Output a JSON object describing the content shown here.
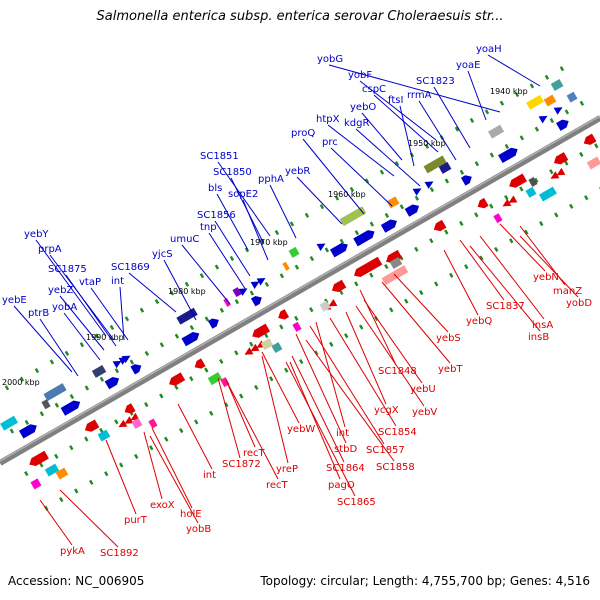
{
  "title": "Salmonella enterica subsp. enterica serovar Choleraesuis str...",
  "footer": {
    "accession": "Accession: NC_006905",
    "summary": "Topology: circular; Length: 4,755,700 bp; Genes: 4,516"
  },
  "colors": {
    "forward": "#0000cc",
    "reverse": "#dd0000",
    "backbone": "#808080",
    "tick": "#228b22"
  },
  "kbp_labels": [
    "1940 kbp",
    "1950 kbp",
    "1960 kbp",
    "1970 kbp",
    "1980 kbp",
    "1990 kbp",
    "2000 kbp"
  ],
  "upper_genes": [
    "yobG",
    "yoaH",
    "yobF",
    "yoaE",
    "SC1823",
    "cspC",
    "rrmA",
    "ftsI",
    "yebO",
    "htpX",
    "kdgR",
    "proQ",
    "prc",
    "SC1851",
    "pphA",
    "SC1850",
    "yebR",
    "bls",
    "sopE2",
    "SC1856",
    "tnp",
    "umuC",
    "yjcS",
    "yebY",
    "prpA",
    "SC1875",
    "vtaP",
    "SC1869",
    "yebZ",
    "int",
    "yobA",
    "yebE",
    "ptrB"
  ],
  "lower_genes": [
    "yebN",
    "manZ",
    "yobD",
    "SC1837",
    "insA",
    "yebQ",
    "insB",
    "yebS",
    "yebT",
    "SC1848",
    "yebU",
    "yebV",
    "ycgX",
    "SC1854",
    "int",
    "SC1857",
    "yebW",
    "stbD",
    "SC1858",
    "SC1864",
    "pagO",
    "yreP",
    "SC1865",
    "recT",
    "SC1872",
    "recT",
    "int",
    "holE",
    "exoX",
    "yobB",
    "purT",
    "pykA",
    "SC1892"
  ]
}
